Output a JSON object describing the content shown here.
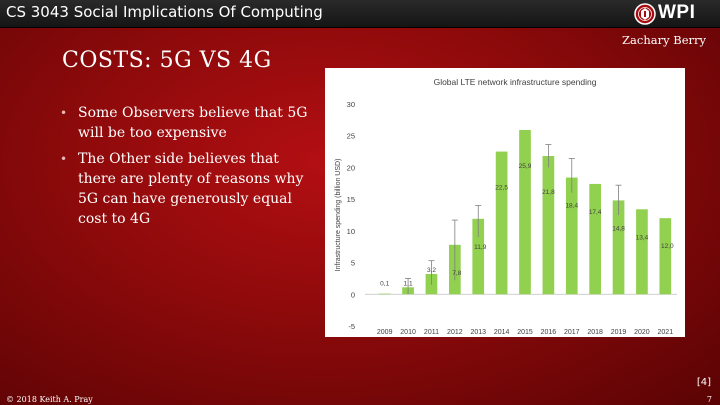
{
  "header": {
    "course_title": "CS 3043 Social Implications Of Computing",
    "logo_text": "WPI",
    "logo_icon": "wpi-seal-icon"
  },
  "slide": {
    "author": "Zachary Berry",
    "title": "COSTS: 5G VS 4G",
    "bullets": [
      "Some Observers believe that 5G will be too expensive",
      "The Other side believes that there are plenty of reasons why 5G can have generously equal cost to 4G"
    ],
    "reference": "[4]",
    "copyright": "© 2018 Keith A. Pray",
    "page_number": "7"
  },
  "colors": {
    "bar": "#92d050",
    "accent": "#a50d10"
  },
  "chart_data": {
    "type": "bar",
    "title": "Global LTE network infrastructure spending",
    "xlabel": "",
    "ylabel": "Infrastructure spending (billion USD)",
    "ylim": [
      -5,
      30
    ],
    "yticks": [
      -5,
      0,
      5,
      10,
      15,
      20,
      25,
      30
    ],
    "categories": [
      "2009",
      "2010",
      "2011",
      "2012",
      "2013",
      "2014",
      "2015",
      "2016",
      "2017",
      "2018",
      "2019",
      "2020",
      "2021"
    ],
    "values": [
      0.1,
      1.1,
      3.2,
      7.8,
      11.9,
      22.5,
      25.9,
      21.8,
      18.4,
      17.4,
      14.8,
      13.4,
      12.0
    ],
    "labels": [
      "0,1",
      "1,1",
      "3,2",
      "7,8",
      "11,9",
      "22,5",
      "25,9",
      "21,8",
      "18,4",
      "17,4",
      "14,8",
      "13,4",
      "12,0"
    ],
    "error_upper": [
      0.1,
      2.5,
      5.3,
      11.7,
      14.0,
      22.5,
      25.9,
      23.6,
      21.4,
      17.4,
      17.2,
      13.4,
      12.0
    ],
    "error_lower": [
      0.1,
      0.0,
      1.5,
      2.2,
      9.0,
      22.5,
      25.9,
      20.0,
      16.0,
      17.4,
      12.5,
      13.4,
      12.0
    ],
    "grid": false
  }
}
